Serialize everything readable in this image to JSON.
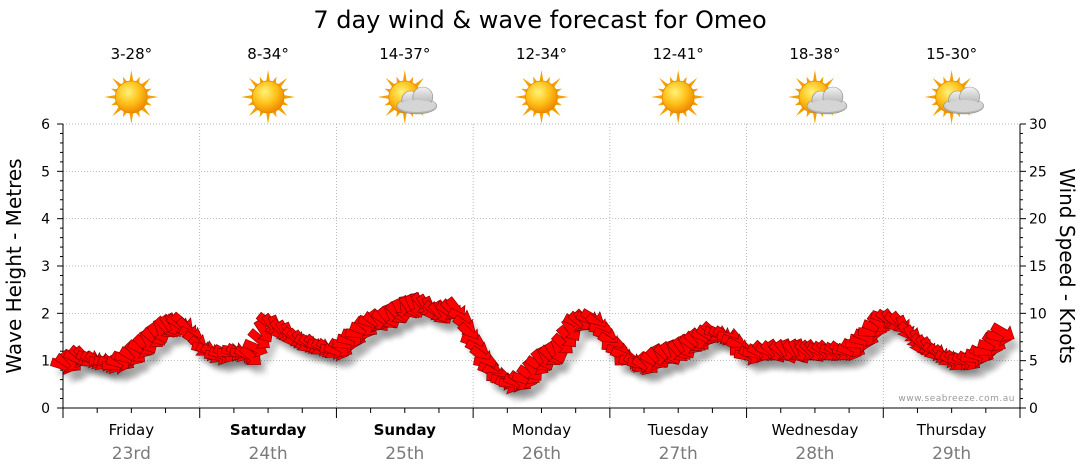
{
  "chart_data": {
    "type": "line",
    "title": "7 day wind & wave forecast for Omeo",
    "ylabel_left": "Wave Height - Metres",
    "ylabel_right": "Wind Speed - Knots",
    "ylim_left": [
      0,
      6
    ],
    "ylim_right": [
      0,
      30
    ],
    "yticks_left": [
      "0",
      "1",
      "2",
      "3",
      "4",
      "5",
      "6"
    ],
    "yticks_right": [
      "0",
      "5",
      "10",
      "15",
      "20",
      "25",
      "30"
    ],
    "grid": true,
    "credit": "www.seabreeze.com.au",
    "days": [
      {
        "day": "Friday",
        "date": "23rd",
        "temp": "3-28°",
        "weather": "sunny",
        "bold": false
      },
      {
        "day": "Saturday",
        "date": "24th",
        "temp": "8-34°",
        "weather": "sunny",
        "bold": true
      },
      {
        "day": "Sunday",
        "date": "25th",
        "temp": "14-37°",
        "weather": "partly-cloudy",
        "bold": true
      },
      {
        "day": "Monday",
        "date": "26th",
        "temp": "12-34°",
        "weather": "sunny",
        "bold": false
      },
      {
        "day": "Tuesday",
        "date": "27th",
        "temp": "12-41°",
        "weather": "sunny",
        "bold": false
      },
      {
        "day": "Wednesday",
        "date": "28th",
        "temp": "18-38°",
        "weather": "partly-cloudy",
        "bold": false
      },
      {
        "day": "Thursday",
        "date": "29th",
        "temp": "15-30°",
        "weather": "partly-cloudy",
        "bold": false
      }
    ],
    "series": [
      {
        "name": "Wind Speed (knots)",
        "color": "#ff0000",
        "x_hours": [
          0,
          3,
          6,
          9,
          12,
          15,
          18,
          21,
          24,
          27,
          30,
          33,
          36,
          39,
          42,
          45,
          48,
          51,
          54,
          57,
          60,
          63,
          66,
          69,
          72,
          75,
          78,
          81,
          84,
          87,
          90,
          93,
          96,
          99,
          102,
          105,
          108,
          111,
          114,
          117,
          120,
          123,
          126,
          129,
          132,
          135,
          138,
          141,
          144,
          147,
          150,
          153,
          156,
          159,
          162,
          165
        ],
        "values": [
          4.5,
          5.5,
          5,
          4.5,
          5.5,
          7,
          8.5,
          9,
          6.5,
          5.5,
          6,
          5.5,
          9,
          8,
          7,
          6.5,
          6,
          7.5,
          9,
          9.5,
          10.5,
          11,
          10,
          10.5,
          7,
          4,
          2.5,
          3,
          5,
          6,
          9,
          9.5,
          7,
          5,
          4.5,
          5.5,
          6,
          7,
          8,
          7.5,
          5.5,
          6,
          6,
          6,
          6,
          6,
          6,
          7.5,
          9.5,
          9,
          7,
          6,
          5,
          5,
          6,
          8
        ]
      },
      {
        "name": "Wind Direction (deg from)",
        "color": "#ff0000",
        "values": [
          300,
          310,
          290,
          280,
          300,
          320,
          330,
          310,
          300,
          290,
          280,
          300,
          320,
          330,
          310,
          300,
          290,
          280,
          300,
          320,
          340,
          330,
          320,
          310,
          300,
          290,
          280,
          300,
          320,
          330,
          310,
          300,
          290,
          280,
          300,
          320,
          330,
          310,
          300,
          290,
          280,
          300,
          320,
          330,
          310,
          300,
          290,
          280,
          300,
          320,
          330,
          310,
          300,
          290,
          280,
          300
        ]
      }
    ]
  }
}
